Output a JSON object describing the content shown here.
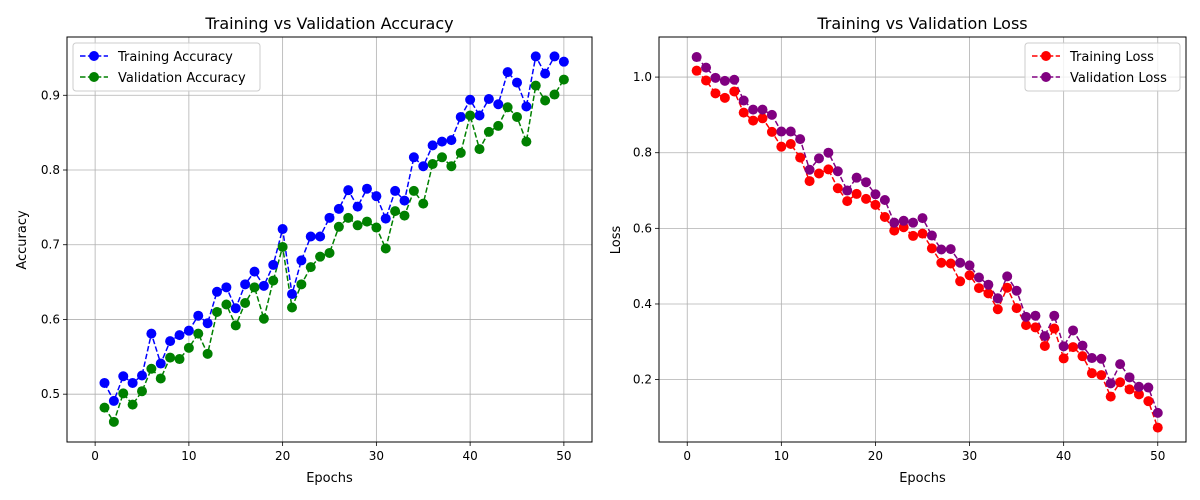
{
  "chart_data": [
    {
      "type": "line",
      "title": "Training vs Validation Accuracy",
      "xlabel": "Epochs",
      "ylabel": "Accuracy",
      "xlim": [
        -3,
        53
      ],
      "ylim": [
        0.436,
        0.978
      ],
      "xticks": [
        0,
        10,
        20,
        30,
        40,
        50
      ],
      "yticks": [
        0.5,
        0.6,
        0.7,
        0.8,
        0.9
      ],
      "ytick_labels": [
        "0.5",
        "0.6",
        "0.7",
        "0.8",
        "0.9"
      ],
      "grid": true,
      "legend": "top-left",
      "x": [
        1,
        2,
        3,
        4,
        5,
        6,
        7,
        8,
        9,
        10,
        11,
        12,
        13,
        14,
        15,
        16,
        17,
        18,
        19,
        20,
        21,
        22,
        23,
        24,
        25,
        26,
        27,
        28,
        29,
        30,
        31,
        32,
        33,
        34,
        35,
        36,
        37,
        38,
        39,
        40,
        41,
        42,
        43,
        44,
        45,
        46,
        47,
        48,
        49,
        50
      ],
      "series": [
        {
          "name": "Training Accuracy",
          "color": "#0000ff",
          "values": [
            0.515,
            0.491,
            0.524,
            0.515,
            0.525,
            0.581,
            0.541,
            0.571,
            0.579,
            0.585,
            0.605,
            0.595,
            0.637,
            0.643,
            0.615,
            0.647,
            0.664,
            0.645,
            0.673,
            0.721,
            0.634,
            0.679,
            0.711,
            0.711,
            0.736,
            0.748,
            0.773,
            0.751,
            0.775,
            0.765,
            0.735,
            0.772,
            0.759,
            0.817,
            0.805,
            0.833,
            0.838,
            0.84,
            0.871,
            0.894,
            0.873,
            0.895,
            0.888,
            0.931,
            0.917,
            0.885,
            0.952,
            0.929,
            0.952,
            0.945
          ]
        },
        {
          "name": "Validation Accuracy",
          "color": "#008000",
          "values": [
            0.482,
            0.463,
            0.501,
            0.486,
            0.504,
            0.534,
            0.521,
            0.549,
            0.547,
            0.562,
            0.581,
            0.554,
            0.61,
            0.62,
            0.592,
            0.622,
            0.643,
            0.601,
            0.652,
            0.697,
            0.616,
            0.647,
            0.67,
            0.684,
            0.689,
            0.724,
            0.736,
            0.726,
            0.731,
            0.723,
            0.695,
            0.745,
            0.739,
            0.772,
            0.755,
            0.808,
            0.817,
            0.805,
            0.823,
            0.873,
            0.828,
            0.851,
            0.859,
            0.884,
            0.871,
            0.838,
            0.913,
            0.893,
            0.901,
            0.921
          ]
        }
      ]
    },
    {
      "type": "line",
      "title": "Training vs Validation Loss",
      "xlabel": "Epochs",
      "ylabel": "Loss",
      "xlim": [
        -3,
        53
      ],
      "ylim": [
        0.035,
        1.106
      ],
      "xticks": [
        0,
        10,
        20,
        30,
        40,
        50
      ],
      "yticks": [
        0.2,
        0.4,
        0.6,
        0.8,
        1.0
      ],
      "ytick_labels": [
        "0.2",
        "0.4",
        "0.6",
        "0.8",
        "1.0"
      ],
      "grid": true,
      "legend": "top-right",
      "x": [
        1,
        2,
        3,
        4,
        5,
        6,
        7,
        8,
        9,
        10,
        11,
        12,
        13,
        14,
        15,
        16,
        17,
        18,
        19,
        20,
        21,
        22,
        23,
        24,
        25,
        26,
        27,
        28,
        29,
        30,
        31,
        32,
        33,
        34,
        35,
        36,
        37,
        38,
        39,
        40,
        41,
        42,
        43,
        44,
        45,
        46,
        47,
        48,
        49,
        50
      ],
      "series": [
        {
          "name": "Training Loss",
          "color": "#ff0000",
          "values": [
            1.017,
            0.991,
            0.957,
            0.945,
            0.962,
            0.906,
            0.885,
            0.891,
            0.855,
            0.816,
            0.823,
            0.787,
            0.725,
            0.745,
            0.756,
            0.706,
            0.672,
            0.691,
            0.678,
            0.662,
            0.63,
            0.594,
            0.603,
            0.58,
            0.586,
            0.547,
            0.509,
            0.507,
            0.46,
            0.476,
            0.442,
            0.428,
            0.386,
            0.443,
            0.389,
            0.344,
            0.338,
            0.289,
            0.335,
            0.256,
            0.286,
            0.262,
            0.217,
            0.212,
            0.155,
            0.193,
            0.174,
            0.161,
            0.143,
            0.073
          ]
        },
        {
          "name": "Validation Loss",
          "color": "#800080",
          "values": [
            1.053,
            1.025,
            0.998,
            0.99,
            0.993,
            0.938,
            0.914,
            0.914,
            0.9,
            0.856,
            0.856,
            0.836,
            0.755,
            0.785,
            0.8,
            0.751,
            0.7,
            0.734,
            0.722,
            0.69,
            0.675,
            0.615,
            0.62,
            0.615,
            0.627,
            0.581,
            0.544,
            0.545,
            0.509,
            0.502,
            0.47,
            0.451,
            0.415,
            0.473,
            0.435,
            0.366,
            0.369,
            0.315,
            0.369,
            0.288,
            0.33,
            0.29,
            0.257,
            0.255,
            0.19,
            0.241,
            0.206,
            0.181,
            0.179,
            0.112
          ]
        }
      ]
    }
  ]
}
